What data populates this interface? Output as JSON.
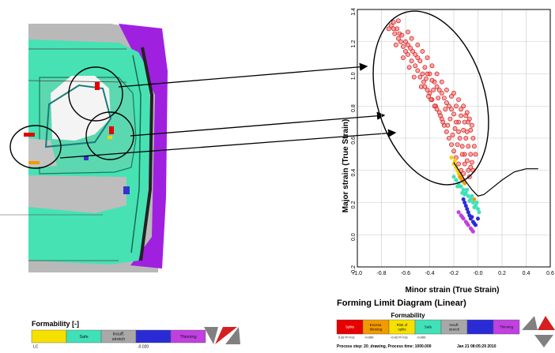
{
  "chart_data": {
    "type": "scatter",
    "title": "Forming Limit Diagram (Linear)",
    "xlabel": "Minor strain (True Strain)",
    "ylabel": "Major strain (True Strain)",
    "xlim": [
      -1.0,
      0.6
    ],
    "ylim": [
      -0.2,
      1.4
    ],
    "xticks": [
      "-1.0",
      "-0.8",
      "-0.6",
      "-0.4",
      "-0.2",
      "-0.0",
      "0.2",
      "0.4",
      "0.6"
    ],
    "yticks": [
      "-0.2",
      "0.0",
      "0.2",
      "0.4",
      "0.6",
      "0.8",
      "1.0",
      "1.2",
      "1.4"
    ],
    "grid": true,
    "flc": {
      "x": [
        -0.2,
        -0.1,
        -0.05,
        0.0,
        0.05,
        0.1,
        0.2,
        0.3,
        0.4,
        0.5
      ],
      "y": [
        0.45,
        0.33,
        0.28,
        0.24,
        0.25,
        0.28,
        0.34,
        0.39,
        0.41,
        0.41
      ]
    },
    "series": [
      {
        "color": "#e60000",
        "points": [
          [
            -0.72,
            1.3
          ],
          [
            -0.7,
            1.28
          ],
          [
            -0.69,
            1.25
          ],
          [
            -0.66,
            1.22
          ],
          [
            -0.64,
            1.2
          ],
          [
            -0.62,
            1.17
          ],
          [
            -0.6,
            1.14
          ],
          [
            -0.58,
            1.12
          ],
          [
            -0.55,
            1.08
          ],
          [
            -0.52,
            1.05
          ],
          [
            -0.5,
            1.02
          ],
          [
            -0.48,
            0.98
          ],
          [
            -0.45,
            0.95
          ],
          [
            -0.42,
            0.9
          ],
          [
            -0.4,
            0.88
          ],
          [
            -0.38,
            0.84
          ],
          [
            -0.35,
            0.8
          ],
          [
            -0.32,
            0.76
          ],
          [
            -0.3,
            0.72
          ],
          [
            -0.28,
            0.68
          ],
          [
            -0.26,
            0.64
          ],
          [
            -0.24,
            0.6
          ],
          [
            -0.22,
            0.56
          ],
          [
            -0.2,
            0.52
          ],
          [
            -0.18,
            0.48
          ],
          [
            -0.16,
            0.44
          ],
          [
            -0.14,
            0.4
          ],
          [
            -0.12,
            0.38
          ],
          [
            -0.65,
            1.25
          ],
          [
            -0.6,
            1.2
          ],
          [
            -0.56,
            1.16
          ],
          [
            -0.52,
            1.12
          ],
          [
            -0.48,
            1.08
          ],
          [
            -0.44,
            1.04
          ],
          [
            -0.4,
            1.0
          ],
          [
            -0.36,
            0.95
          ],
          [
            -0.32,
            0.9
          ],
          [
            -0.28,
            0.85
          ],
          [
            -0.24,
            0.8
          ],
          [
            -0.2,
            0.75
          ],
          [
            -0.16,
            0.7
          ],
          [
            -0.12,
            0.65
          ],
          [
            -0.1,
            0.6
          ],
          [
            -0.08,
            0.55
          ],
          [
            -0.06,
            0.5
          ],
          [
            -0.05,
            0.45
          ],
          [
            -0.04,
            0.4
          ],
          [
            -0.3,
            0.95
          ],
          [
            -0.26,
            0.9
          ],
          [
            -0.22,
            0.86
          ],
          [
            -0.18,
            0.8
          ],
          [
            -0.14,
            0.78
          ],
          [
            -0.1,
            0.74
          ],
          [
            -0.08,
            0.7
          ],
          [
            -0.06,
            0.65
          ],
          [
            -0.04,
            0.6
          ],
          [
            -0.03,
            0.55
          ],
          [
            -0.02,
            0.5
          ],
          [
            -0.55,
            1.22
          ],
          [
            -0.5,
            1.18
          ],
          [
            -0.46,
            1.14
          ],
          [
            -0.42,
            1.1
          ],
          [
            -0.38,
            1.05
          ],
          [
            -0.34,
            1.0
          ],
          [
            -0.7,
            1.32
          ],
          [
            -0.67,
            1.28
          ],
          [
            -0.63,
            1.24
          ],
          [
            -0.58,
            1.18
          ],
          [
            -0.54,
            1.14
          ],
          [
            -0.46,
            1.0
          ],
          [
            -0.43,
            0.97
          ],
          [
            -0.37,
            0.9
          ],
          [
            -0.33,
            0.85
          ],
          [
            -0.27,
            0.78
          ],
          [
            -0.23,
            0.72
          ],
          [
            -0.19,
            0.66
          ],
          [
            -0.15,
            0.6
          ],
          [
            -0.13,
            0.55
          ],
          [
            -0.11,
            0.5
          ],
          [
            -0.09,
            0.46
          ],
          [
            -0.12,
            0.8
          ],
          [
            -0.09,
            0.76
          ],
          [
            -0.07,
            0.72
          ],
          [
            -0.05,
            0.68
          ],
          [
            -0.2,
            0.88
          ],
          [
            -0.16,
            0.84
          ],
          [
            -0.62,
            1.1
          ],
          [
            -0.57,
            1.04
          ],
          [
            -0.53,
            0.98
          ],
          [
            -0.47,
            0.92
          ],
          [
            -0.41,
            0.86
          ],
          [
            -0.36,
            0.8
          ],
          [
            -0.31,
            0.74
          ],
          [
            -0.25,
            0.68
          ],
          [
            -0.21,
            0.62
          ],
          [
            -0.17,
            0.56
          ],
          [
            -0.13,
            0.5
          ],
          [
            -0.11,
            0.44
          ],
          [
            -0.08,
            0.4
          ],
          [
            -0.07,
            0.36
          ],
          [
            -0.68,
            1.18
          ],
          [
            -0.74,
            1.28
          ],
          [
            -0.44,
            0.92
          ],
          [
            -0.39,
            0.84
          ],
          [
            -0.34,
            0.78
          ],
          [
            -0.29,
            0.7
          ],
          [
            -0.06,
            0.42
          ],
          [
            -0.09,
            0.64
          ],
          [
            -0.11,
            0.7
          ],
          [
            -0.14,
            0.74
          ],
          [
            -0.16,
            0.64
          ],
          [
            -0.18,
            0.7
          ],
          [
            -0.22,
            0.78
          ],
          [
            -0.26,
            0.82
          ],
          [
            -0.3,
            0.88
          ],
          [
            -0.34,
            0.92
          ],
          [
            -0.38,
            0.96
          ],
          [
            -0.42,
            1.0
          ],
          [
            -0.5,
            1.1
          ],
          [
            -0.58,
            1.26
          ],
          [
            -0.66,
            1.33
          ]
        ]
      },
      {
        "color": "#f5d000",
        "points": [
          [
            -0.22,
            0.48
          ],
          [
            -0.2,
            0.44
          ],
          [
            -0.18,
            0.42
          ],
          [
            -0.16,
            0.38
          ],
          [
            -0.19,
            0.46
          ],
          [
            -0.17,
            0.4
          ]
        ]
      },
      {
        "color": "#f29a00",
        "points": [
          [
            -0.15,
            0.36
          ],
          [
            -0.13,
            0.34
          ],
          [
            -0.11,
            0.32
          ],
          [
            -0.14,
            0.35
          ],
          [
            -0.12,
            0.33
          ],
          [
            -0.03,
            0.22
          ]
        ]
      },
      {
        "color": "#40e0b8",
        "points": [
          [
            -0.18,
            0.34
          ],
          [
            -0.16,
            0.32
          ],
          [
            -0.14,
            0.3
          ],
          [
            -0.12,
            0.28
          ],
          [
            -0.1,
            0.26
          ],
          [
            -0.08,
            0.24
          ],
          [
            -0.06,
            0.22
          ],
          [
            -0.04,
            0.2
          ],
          [
            -0.02,
            0.18
          ],
          [
            0.0,
            0.16
          ],
          [
            -0.2,
            0.36
          ],
          [
            -0.15,
            0.3
          ],
          [
            -0.11,
            0.25
          ],
          [
            -0.07,
            0.21
          ],
          [
            -0.03,
            0.17
          ],
          [
            -0.09,
            0.28
          ],
          [
            -0.05,
            0.24
          ],
          [
            -0.01,
            0.2
          ],
          [
            0.01,
            0.14
          ],
          [
            -0.13,
            0.26
          ],
          [
            -0.17,
            0.3
          ]
        ]
      },
      {
        "color": "#2b2bd6",
        "points": [
          [
            -0.12,
            0.22
          ],
          [
            -0.1,
            0.18
          ],
          [
            -0.08,
            0.14
          ],
          [
            -0.06,
            0.1
          ],
          [
            -0.04,
            0.08
          ],
          [
            -0.02,
            0.06
          ],
          [
            -0.11,
            0.2
          ],
          [
            -0.07,
            0.12
          ],
          [
            -0.03,
            0.07
          ],
          [
            0.0,
            0.1
          ],
          [
            -0.09,
            0.16
          ],
          [
            -0.05,
            0.11
          ]
        ]
      },
      {
        "color": "#c040e0",
        "points": [
          [
            -0.16,
            0.14
          ],
          [
            -0.14,
            0.12
          ],
          [
            -0.12,
            0.1
          ],
          [
            -0.1,
            0.08
          ],
          [
            -0.08,
            0.06
          ],
          [
            -0.06,
            0.04
          ],
          [
            -0.04,
            0.02
          ],
          [
            -0.13,
            0.11
          ],
          [
            -0.09,
            0.07
          ],
          [
            -0.05,
            0.03
          ]
        ]
      }
    ]
  },
  "legend_left": {
    "title": "Formability [-]",
    "items": [
      "",
      "Safe",
      "Insuff. stretch",
      "",
      "Thinning"
    ],
    "colors": [
      "#f5e000",
      "#40e0b8",
      "#a8a8a8",
      "#2b2bd6",
      "#c040e0"
    ],
    "ticks": [
      "LC",
      "",
      "",
      "-0.020",
      ""
    ]
  },
  "legend_right": {
    "title": "Formability",
    "items": [
      "Splits",
      "Excess. thinning",
      "Risk of splits",
      "Safe",
      "Insuff. stretch",
      "",
      "Thinning"
    ],
    "colors": [
      "#e60000",
      "#f29a00",
      "#f5e000",
      "#40e0b8",
      "#a8a8a8",
      "#2b2bd6",
      "#c040e0"
    ],
    "ticks": [
      "0.82 Pr Fs1",
      "-0.000",
      "-0.02 Pr Fs1",
      "-0.000",
      "",
      "",
      ""
    ],
    "process": "Process step: 20_drawing, Process time: 1000.000",
    "date": "Jan 21 08:05:29 2010"
  },
  "colors": {
    "mesh_safe": "#46e2b4",
    "mesh_grey": "#b4b4b4",
    "mesh_purple": "#a020e0",
    "mesh_blue": "#3434cc",
    "logo_grey": "#808080",
    "logo_red": "#d42020"
  }
}
